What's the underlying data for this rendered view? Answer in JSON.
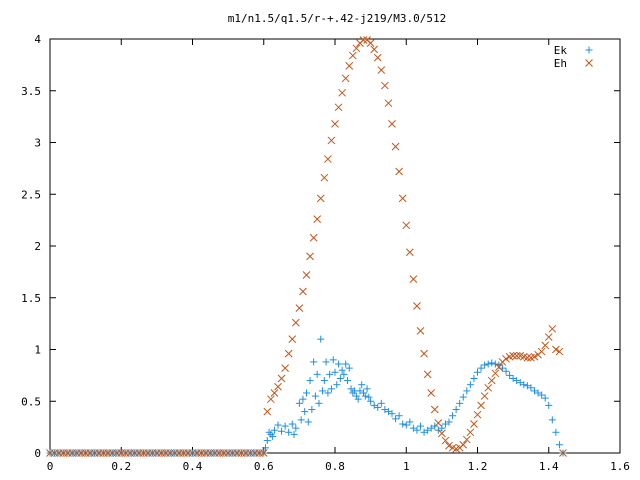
{
  "chart_data": {
    "type": "scatter",
    "title": "m1/n1.5/q1.5/r-+.42-j219/M3.0/512",
    "xlabel": "",
    "ylabel": "",
    "xlim": [
      0,
      1.6
    ],
    "ylim": [
      0,
      4
    ],
    "x_ticks": [
      "0",
      "0.2",
      "0.4",
      "0.6",
      "0.8",
      "1",
      "1.2",
      "1.4",
      "1.6"
    ],
    "y_ticks": [
      "0",
      "0.5",
      "1",
      "1.5",
      "2",
      "2.5",
      "3",
      "3.5",
      "4"
    ],
    "grid": false,
    "legend": "top-right",
    "series": [
      {
        "name": "Ek",
        "marker": "plus",
        "color": "#1f8fe0",
        "points": [
          [
            0.0,
            0.0
          ],
          [
            0.1,
            0.0
          ],
          [
            0.2,
            0.0
          ],
          [
            0.3,
            0.0
          ],
          [
            0.4,
            0.0
          ],
          [
            0.5,
            0.0
          ],
          [
            0.6,
            0.0
          ],
          [
            0.605,
            0.05
          ],
          [
            0.61,
            0.12
          ],
          [
            0.615,
            0.2
          ],
          [
            0.62,
            0.18
          ],
          [
            0.625,
            0.16
          ],
          [
            0.63,
            0.22
          ],
          [
            0.64,
            0.27
          ],
          [
            0.65,
            0.21
          ],
          [
            0.66,
            0.26
          ],
          [
            0.67,
            0.2
          ],
          [
            0.68,
            0.28
          ],
          [
            0.685,
            0.18
          ],
          [
            0.69,
            0.24
          ],
          [
            0.7,
            0.48
          ],
          [
            0.705,
            0.32
          ],
          [
            0.71,
            0.52
          ],
          [
            0.715,
            0.4
          ],
          [
            0.72,
            0.58
          ],
          [
            0.725,
            0.3
          ],
          [
            0.73,
            0.7
          ],
          [
            0.735,
            0.42
          ],
          [
            0.74,
            0.88
          ],
          [
            0.745,
            0.55
          ],
          [
            0.75,
            0.76
          ],
          [
            0.755,
            0.48
          ],
          [
            0.76,
            1.1
          ],
          [
            0.765,
            0.6
          ],
          [
            0.77,
            0.7
          ],
          [
            0.775,
            0.88
          ],
          [
            0.78,
            0.58
          ],
          [
            0.785,
            0.76
          ],
          [
            0.79,
            0.62
          ],
          [
            0.795,
            0.9
          ],
          [
            0.8,
            0.78
          ],
          [
            0.805,
            0.66
          ],
          [
            0.81,
            0.86
          ],
          [
            0.815,
            0.72
          ],
          [
            0.82,
            0.8
          ],
          [
            0.825,
            0.76
          ],
          [
            0.83,
            0.86
          ],
          [
            0.835,
            0.7
          ],
          [
            0.84,
            0.82
          ],
          [
            0.845,
            0.62
          ],
          [
            0.85,
            0.58
          ],
          [
            0.855,
            0.6
          ],
          [
            0.86,
            0.55
          ],
          [
            0.865,
            0.52
          ],
          [
            0.87,
            0.6
          ],
          [
            0.875,
            0.66
          ],
          [
            0.88,
            0.58
          ],
          [
            0.885,
            0.55
          ],
          [
            0.89,
            0.62
          ],
          [
            0.895,
            0.54
          ],
          [
            0.9,
            0.5
          ],
          [
            0.91,
            0.46
          ],
          [
            0.92,
            0.44
          ],
          [
            0.93,
            0.48
          ],
          [
            0.94,
            0.42
          ],
          [
            0.95,
            0.4
          ],
          [
            0.96,
            0.38
          ],
          [
            0.97,
            0.33
          ],
          [
            0.98,
            0.36
          ],
          [
            0.99,
            0.28
          ],
          [
            1.0,
            0.27
          ],
          [
            1.01,
            0.3
          ],
          [
            1.02,
            0.24
          ],
          [
            1.03,
            0.22
          ],
          [
            1.04,
            0.26
          ],
          [
            1.05,
            0.2
          ],
          [
            1.06,
            0.22
          ],
          [
            1.07,
            0.24
          ],
          [
            1.08,
            0.26
          ],
          [
            1.09,
            0.22
          ],
          [
            1.1,
            0.24
          ],
          [
            1.11,
            0.28
          ],
          [
            1.12,
            0.3
          ],
          [
            1.13,
            0.36
          ],
          [
            1.14,
            0.42
          ],
          [
            1.15,
            0.48
          ],
          [
            1.16,
            0.54
          ],
          [
            1.17,
            0.6
          ],
          [
            1.18,
            0.66
          ],
          [
            1.19,
            0.72
          ],
          [
            1.2,
            0.78
          ],
          [
            1.21,
            0.82
          ],
          [
            1.22,
            0.85
          ],
          [
            1.23,
            0.86
          ],
          [
            1.24,
            0.87
          ],
          [
            1.25,
            0.86
          ],
          [
            1.26,
            0.85
          ],
          [
            1.27,
            0.82
          ],
          [
            1.28,
            0.79
          ],
          [
            1.29,
            0.75
          ],
          [
            1.3,
            0.72
          ],
          [
            1.31,
            0.7
          ],
          [
            1.32,
            0.68
          ],
          [
            1.33,
            0.66
          ],
          [
            1.34,
            0.65
          ],
          [
            1.35,
            0.63
          ],
          [
            1.36,
            0.6
          ],
          [
            1.37,
            0.58
          ],
          [
            1.38,
            0.56
          ],
          [
            1.39,
            0.53
          ],
          [
            1.4,
            0.46
          ],
          [
            1.41,
            0.32
          ],
          [
            1.42,
            0.2
          ],
          [
            1.43,
            0.08
          ],
          [
            1.44,
            0.0
          ]
        ]
      },
      {
        "name": "Eh",
        "marker": "cross",
        "color": "#c0561a",
        "points": [
          [
            0.0,
            0.0
          ],
          [
            0.1,
            0.0
          ],
          [
            0.2,
            0.0
          ],
          [
            0.3,
            0.0
          ],
          [
            0.4,
            0.0
          ],
          [
            0.5,
            0.0
          ],
          [
            0.6,
            0.0
          ],
          [
            0.61,
            0.4
          ],
          [
            0.62,
            0.52
          ],
          [
            0.63,
            0.58
          ],
          [
            0.64,
            0.64
          ],
          [
            0.65,
            0.72
          ],
          [
            0.66,
            0.82
          ],
          [
            0.67,
            0.96
          ],
          [
            0.68,
            1.1
          ],
          [
            0.69,
            1.26
          ],
          [
            0.7,
            1.4
          ],
          [
            0.71,
            1.56
          ],
          [
            0.72,
            1.72
          ],
          [
            0.73,
            1.9
          ],
          [
            0.74,
            2.08
          ],
          [
            0.75,
            2.26
          ],
          [
            0.76,
            2.46
          ],
          [
            0.77,
            2.66
          ],
          [
            0.78,
            2.84
          ],
          [
            0.79,
            3.02
          ],
          [
            0.8,
            3.18
          ],
          [
            0.81,
            3.34
          ],
          [
            0.82,
            3.48
          ],
          [
            0.83,
            3.62
          ],
          [
            0.84,
            3.74
          ],
          [
            0.85,
            3.84
          ],
          [
            0.86,
            3.91
          ],
          [
            0.87,
            3.96
          ],
          [
            0.88,
            3.99
          ],
          [
            0.89,
            3.99
          ],
          [
            0.9,
            3.96
          ],
          [
            0.91,
            3.9
          ],
          [
            0.92,
            3.82
          ],
          [
            0.93,
            3.7
          ],
          [
            0.94,
            3.55
          ],
          [
            0.95,
            3.38
          ],
          [
            0.96,
            3.18
          ],
          [
            0.97,
            2.96
          ],
          [
            0.98,
            2.72
          ],
          [
            0.99,
            2.46
          ],
          [
            1.0,
            2.2
          ],
          [
            1.01,
            1.94
          ],
          [
            1.02,
            1.68
          ],
          [
            1.03,
            1.42
          ],
          [
            1.04,
            1.18
          ],
          [
            1.05,
            0.96
          ],
          [
            1.06,
            0.76
          ],
          [
            1.07,
            0.58
          ],
          [
            1.08,
            0.42
          ],
          [
            1.09,
            0.29
          ],
          [
            1.1,
            0.19
          ],
          [
            1.11,
            0.12
          ],
          [
            1.12,
            0.07
          ],
          [
            1.13,
            0.05
          ],
          [
            1.14,
            0.04
          ],
          [
            1.15,
            0.05
          ],
          [
            1.16,
            0.08
          ],
          [
            1.17,
            0.13
          ],
          [
            1.18,
            0.2
          ],
          [
            1.19,
            0.28
          ],
          [
            1.2,
            0.37
          ],
          [
            1.21,
            0.46
          ],
          [
            1.22,
            0.55
          ],
          [
            1.23,
            0.63
          ],
          [
            1.24,
            0.7
          ],
          [
            1.25,
            0.77
          ],
          [
            1.26,
            0.83
          ],
          [
            1.27,
            0.88
          ],
          [
            1.28,
            0.91
          ],
          [
            1.29,
            0.93
          ],
          [
            1.3,
            0.94
          ],
          [
            1.31,
            0.94
          ],
          [
            1.32,
            0.94
          ],
          [
            1.33,
            0.93
          ],
          [
            1.34,
            0.92
          ],
          [
            1.35,
            0.92
          ],
          [
            1.36,
            0.93
          ],
          [
            1.37,
            0.95
          ],
          [
            1.38,
            0.98
          ],
          [
            1.39,
            1.04
          ],
          [
            1.4,
            1.12
          ],
          [
            1.41,
            1.2
          ],
          [
            1.42,
            1.0
          ],
          [
            1.43,
            0.98
          ],
          [
            1.44,
            0.0
          ]
        ]
      }
    ]
  }
}
